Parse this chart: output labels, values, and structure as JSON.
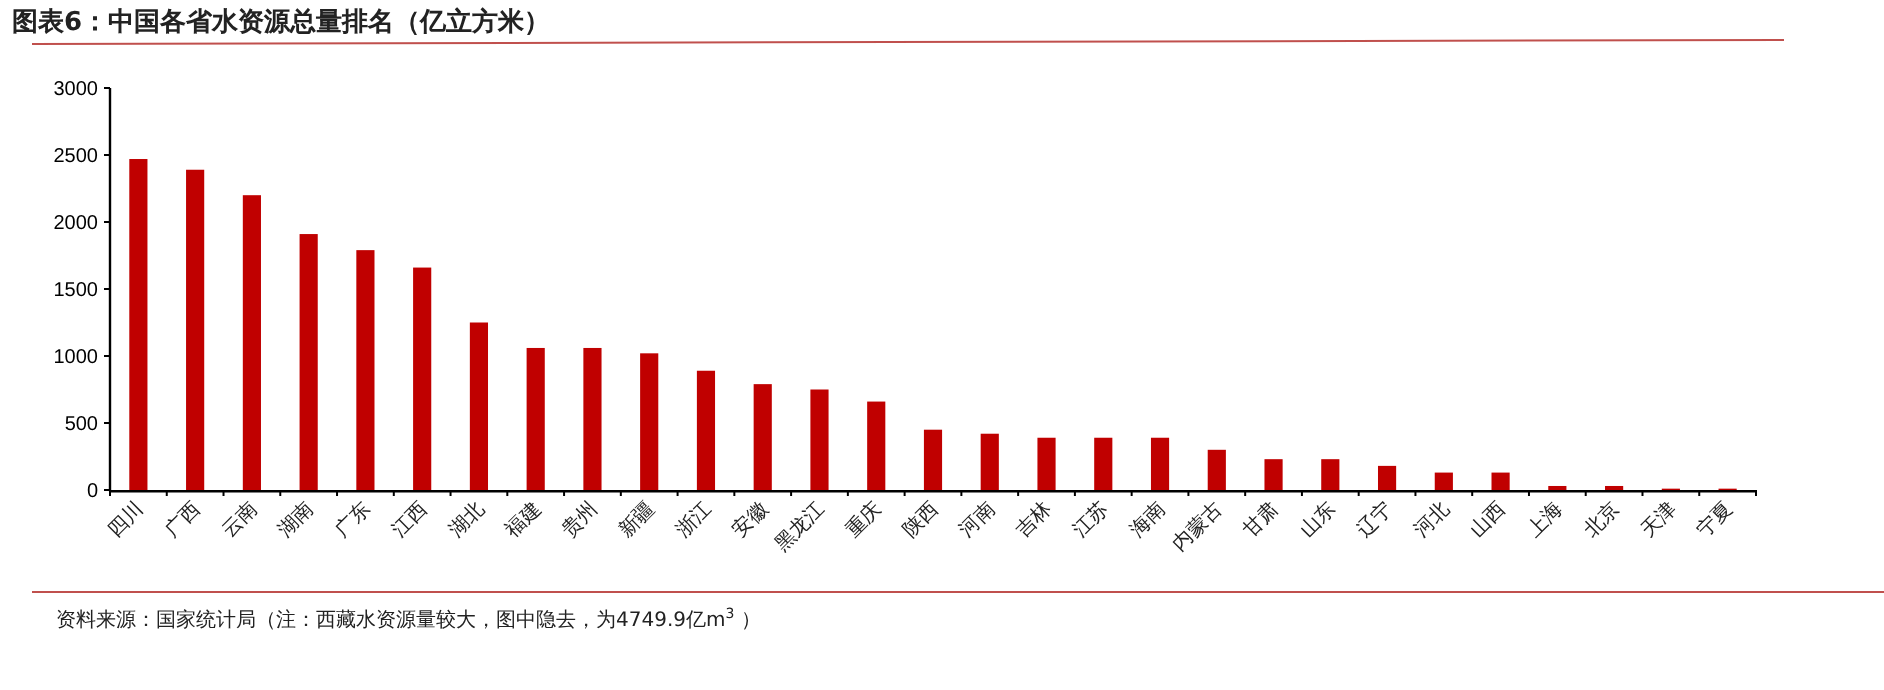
{
  "chart_data": {
    "type": "bar",
    "title": "图表6：中国各省水资源总量排名（亿立方米）",
    "categories": [
      "四川",
      "广西",
      "云南",
      "湖南",
      "广东",
      "江西",
      "湖北",
      "福建",
      "贵州",
      "新疆",
      "浙江",
      "安徽",
      "黑龙江",
      "重庆",
      "陕西",
      "河南",
      "吉林",
      "江苏",
      "海南",
      "内蒙古",
      "甘肃",
      "山东",
      "辽宁",
      "河北",
      "山西",
      "上海",
      "北京",
      "天津",
      "宁夏"
    ],
    "values": [
      2470,
      2390,
      2200,
      1910,
      1790,
      1660,
      1250,
      1060,
      1060,
      1020,
      890,
      790,
      750,
      660,
      450,
      420,
      390,
      390,
      390,
      300,
      230,
      230,
      180,
      130,
      130,
      30,
      30,
      10,
      10
    ],
    "color": "#c00000",
    "ylim": [
      0,
      3000
    ],
    "yticks": [
      0,
      500,
      1000,
      1500,
      2000,
      2500,
      3000
    ],
    "grid": false,
    "annotations": [
      "资料来源：国家统计局（注：西藏水资源量较大，图中隐去，为4749.9亿m$^{3}$ ）"
    ]
  }
}
